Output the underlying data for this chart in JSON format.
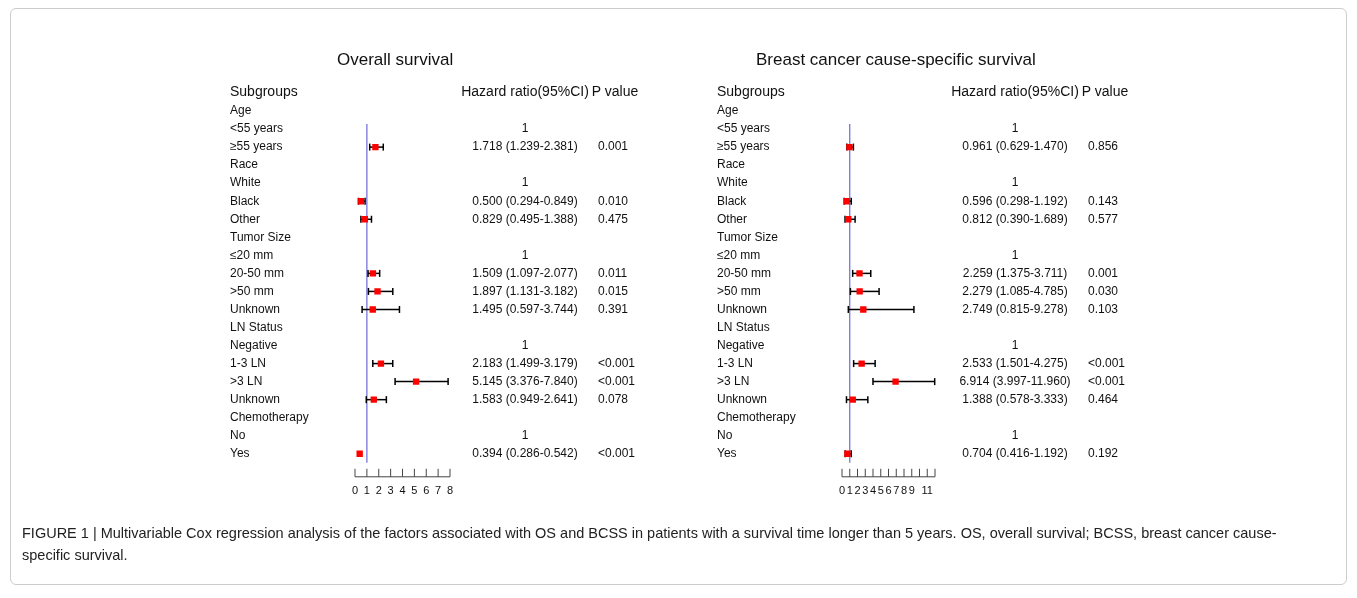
{
  "chart_data": [
    {
      "type": "scatter",
      "title": "Overall survival",
      "orientation": "horizontal",
      "marker": "square",
      "color": "#ff0000",
      "categories": [
        "Age",
        "<55 years",
        "≥55 years",
        "Race",
        "White",
        "Black",
        "Other",
        "Tumor Size",
        "≤20 mm",
        "20-50 mm",
        ">50 mm",
        "Unknown",
        "LN Status",
        "Negative",
        "1-3 LN",
        ">3 LN",
        "Unknown",
        "Chemotherapy",
        "No",
        "Yes"
      ],
      "values": [
        null,
        null,
        1.718,
        null,
        null,
        0.5,
        0.829,
        null,
        null,
        1.509,
        1.897,
        1.495,
        null,
        null,
        2.183,
        5.145,
        1.583,
        null,
        null,
        0.394
      ],
      "errors": [
        null,
        null,
        [
          1.239,
          2.381
        ],
        null,
        null,
        [
          0.294,
          0.849
        ],
        [
          0.495,
          1.388
        ],
        null,
        null,
        [
          1.097,
          2.077
        ],
        [
          1.131,
          3.182
        ],
        [
          0.597,
          3.744
        ],
        null,
        null,
        [
          1.499,
          3.179
        ],
        [
          3.376,
          7.84
        ],
        [
          0.949,
          2.641
        ],
        null,
        null,
        null
      ],
      "value_labels": [
        null,
        "1",
        "1.718 (1.239-2.381)",
        null,
        "1",
        "0.500 (0.294-0.849)",
        "0.829 (0.495-1.388)",
        null,
        "1",
        "1.509 (1.097-2.077)",
        "1.897 (1.131-3.182)",
        "1.495 (0.597-3.744)",
        null,
        "1",
        "2.183 (1.499-3.179)",
        "5.145 (3.376-7.840)",
        "1.583 (0.949-2.641)",
        null,
        "1",
        "0.394 (0.286-0.542)"
      ],
      "xlim": [
        0,
        8
      ],
      "xticks": [
        0,
        1,
        2,
        3,
        4,
        5,
        6,
        7,
        8
      ],
      "ref_lines": [
        {
          "axis": "x",
          "value": 1,
          "color": "#6b6bd6"
        }
      ],
      "annotations": [
        "Subgroups",
        "Hazard ratio(95%CI)",
        "P value",
        "0.001",
        "0.010",
        "0.475",
        "0.011",
        "0.015",
        "0.391",
        "<0.001",
        "<0.001",
        "0.078",
        "<0.001"
      ]
    },
    {
      "type": "scatter",
      "title": "Breast cancer cause-specific survival",
      "orientation": "horizontal",
      "marker": "square",
      "color": "#ff0000",
      "categories": [
        "Age",
        "<55 years",
        "≥55 years",
        "Race",
        "White",
        "Black",
        "Other",
        "Tumor Size",
        "≤20 mm",
        "20-50 mm",
        ">50 mm",
        "Unknown",
        "LN Status",
        "Negative",
        "1-3 LN",
        ">3 LN",
        "Unknown",
        "Chemotherapy",
        "No",
        "Yes"
      ],
      "values": [
        null,
        null,
        0.961,
        null,
        null,
        0.596,
        0.812,
        null,
        null,
        2.259,
        2.279,
        2.749,
        null,
        null,
        2.533,
        6.914,
        1.388,
        null,
        null,
        0.704
      ],
      "errors": [
        null,
        null,
        [
          0.629,
          1.47
        ],
        null,
        null,
        [
          0.298,
          1.192
        ],
        [
          0.39,
          1.689
        ],
        null,
        null,
        [
          1.375,
          3.711
        ],
        [
          1.085,
          4.785
        ],
        [
          0.815,
          9.278
        ],
        null,
        null,
        [
          1.501,
          4.275
        ],
        [
          3.997,
          11.96
        ],
        [
          0.578,
          3.333
        ],
        null,
        null,
        [
          0.416,
          1.192
        ]
      ],
      "value_labels": [
        null,
        "1",
        "0.961 (0.629-1.470)",
        null,
        "1",
        "0.596 (0.298-1.192)",
        "0.812 (0.390-1.689)",
        null,
        "1",
        "2.259 (1.375-3.711)",
        "2.279 (1.085-4.785)",
        "2.749 (0.815-9.278)",
        null,
        "1",
        "2.533 (1.501-4.275)",
        "6.914 (3.997-11.960)",
        "1.388 (0.578-3.333)",
        null,
        "1",
        "0.704 (0.416-1.192)"
      ],
      "xlim": [
        0,
        12
      ],
      "xticks": [
        0,
        1,
        2,
        3,
        4,
        5,
        6,
        7,
        8,
        9,
        {
          "value": 10,
          "label": null
        },
        11,
        {
          "value": 12,
          "label": null
        }
      ],
      "ref_lines": [
        {
          "axis": "x",
          "value": 1,
          "color": "#6b6bd6"
        }
      ],
      "annotations": [
        "Subgroups",
        "Hazard ratio(95%CI)",
        "P value",
        "0.856",
        "0.143",
        "0.577",
        "0.001",
        "0.030",
        "0.103",
        "<0.001",
        "<0.001",
        "0.464",
        "0.192",
        "FIGURE 1 | Multivariable Cox regression analysis of the factors associated with OS and BCSS in patients with a survival time longer than 5 years. OS, overall survival; BCSS, breast cancer cause-specific survival."
      ]
    }
  ]
}
